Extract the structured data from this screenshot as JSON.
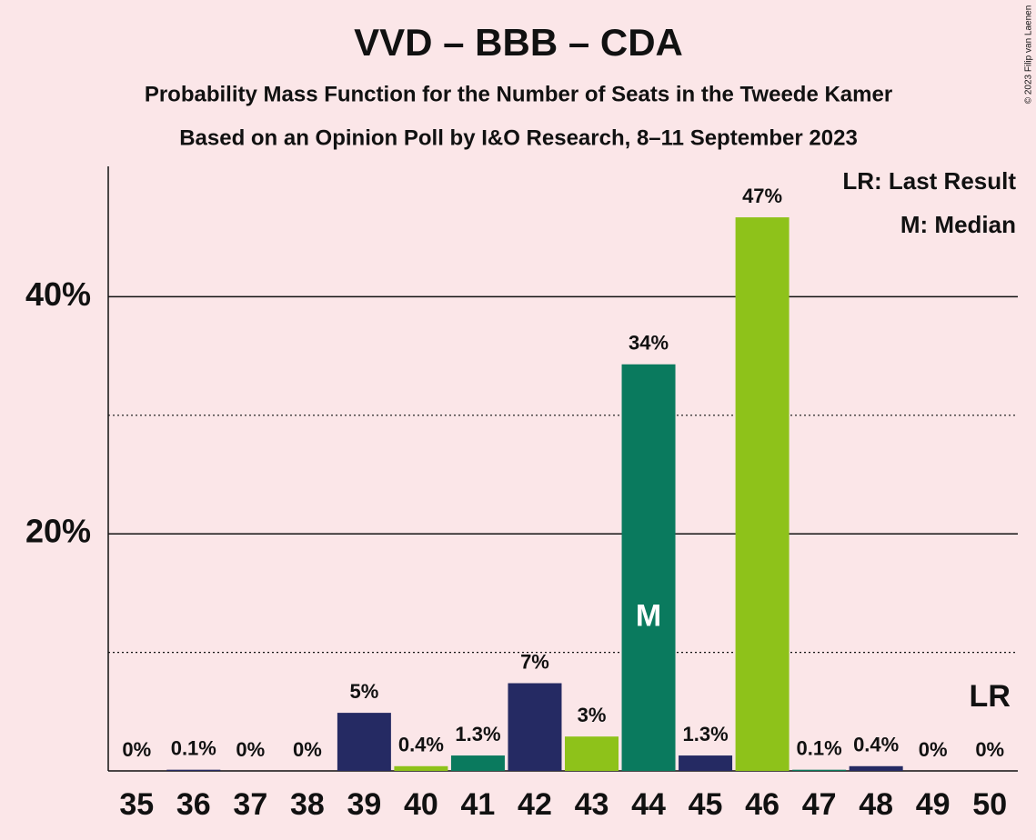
{
  "chart_data": {
    "type": "bar",
    "title": "VVD – BBB – CDA",
    "subtitle": "Probability Mass Function for the Number of Seats in the Tweede Kamer",
    "subtitle2": "Based on an Opinion Poll by I&O Research, 8–11 September 2023",
    "copyright": "© 2023 Filip van Laenen",
    "legend": [
      "LR: Last Result",
      "M: Median"
    ],
    "categories": [
      35,
      36,
      37,
      38,
      39,
      40,
      41,
      42,
      43,
      44,
      45,
      46,
      47,
      48,
      49,
      50
    ],
    "values": [
      0,
      0.1,
      0,
      0,
      4.9,
      0.4,
      1.3,
      7.4,
      2.9,
      34.3,
      1.3,
      46.7,
      0.1,
      0.4,
      0,
      0
    ],
    "value_labels": [
      "0%",
      "0.1%",
      "0%",
      "0%",
      "5%",
      "0.4%",
      "1.3%",
      "7%",
      "3%",
      "34%",
      "1.3%",
      "47%",
      "0.1%",
      "0.4%",
      "0%",
      "0%"
    ],
    "colors": [
      "#0a7a5e",
      "#252a63",
      "#8ec21a",
      "#0a7a5e",
      "#252a63",
      "#8ec21a",
      "#0a7a5e",
      "#252a63",
      "#8ec21a",
      "#0a7a5e",
      "#252a63",
      "#8ec21a",
      "#0a7a5e",
      "#252a63",
      "#8ec21a",
      "#0a7a5e"
    ],
    "annotations": [
      {
        "text": "M",
        "category": 44,
        "position": "inside"
      },
      {
        "text": "LR",
        "category": 50,
        "position": "above"
      }
    ],
    "ylim": [
      0,
      51
    ],
    "yticks": [
      {
        "value": 20,
        "label": "20%"
      },
      {
        "value": 40,
        "label": "40%"
      }
    ],
    "minor_gridlines": [
      10,
      30
    ],
    "grid": true
  }
}
